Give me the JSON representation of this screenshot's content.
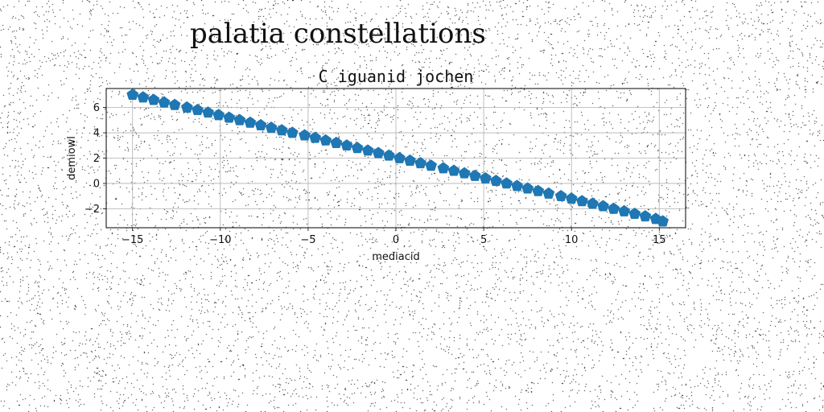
{
  "page_title": "palatia constellations",
  "chart_data": {
    "type": "scatter",
    "title": "C iguanid jochen",
    "xlabel": "mediacid",
    "ylabel": "demiowl",
    "xlim": [
      -16.5,
      16.5
    ],
    "ylim": [
      -3.5,
      7.5
    ],
    "xticks": [
      -15,
      -10,
      -5,
      0,
      5,
      10,
      15
    ],
    "yticks": [
      -2,
      0,
      2,
      4,
      6
    ],
    "grid": true,
    "marker": "pentagon",
    "color": "#1f77b4",
    "series": [
      {
        "x": [
          -15.0,
          -14.4,
          -13.8,
          -13.2,
          -12.6,
          -11.9,
          -11.3,
          -10.7,
          -10.1,
          -9.5,
          -8.9,
          -8.3,
          -7.7,
          -7.1,
          -6.5,
          -5.9,
          -5.2,
          -4.6,
          -4.0,
          -3.4,
          -2.8,
          -2.2,
          -1.6,
          -1.0,
          -0.4,
          0.2,
          0.8,
          1.4,
          2.0,
          2.7,
          3.3,
          3.9,
          4.5,
          5.1,
          5.7,
          6.3,
          6.9,
          7.5,
          8.1,
          8.7,
          9.4,
          10.0,
          10.6,
          11.2,
          11.8,
          12.4,
          13.0,
          13.6,
          14.2,
          14.8,
          15.2
        ],
        "y": [
          7.0,
          6.8,
          6.6,
          6.4,
          6.2,
          6.0,
          5.8,
          5.6,
          5.4,
          5.2,
          5.0,
          4.8,
          4.6,
          4.4,
          4.2,
          4.0,
          3.8,
          3.6,
          3.4,
          3.2,
          3.0,
          2.8,
          2.6,
          2.4,
          2.2,
          2.0,
          1.8,
          1.6,
          1.4,
          1.2,
          1.0,
          0.8,
          0.6,
          0.4,
          0.2,
          0.0,
          -0.2,
          -0.4,
          -0.6,
          -0.8,
          -1.0,
          -1.2,
          -1.4,
          -1.6,
          -1.8,
          -2.0,
          -2.2,
          -2.4,
          -2.6,
          -2.8,
          -3.0
        ]
      }
    ]
  }
}
